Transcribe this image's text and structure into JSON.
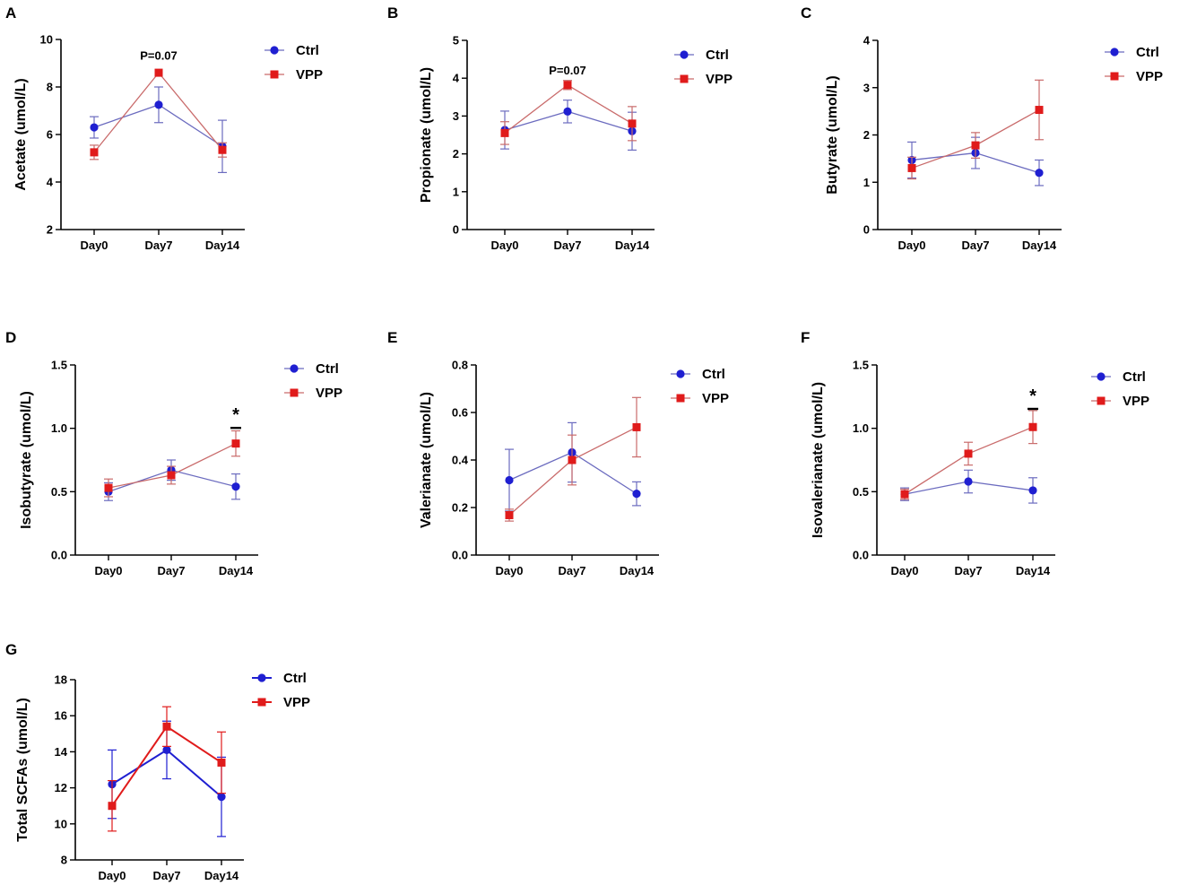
{
  "colors": {
    "ctrl": "#1f1fd1",
    "vpp": "#e01b1b",
    "ctrl_line": "#6b6bbf",
    "vpp_line": "#c96b6b",
    "axis": "#000000"
  },
  "chart_data": [
    {
      "id": "A",
      "type": "line",
      "ylabel": "Acetate (umol/L)",
      "categories": [
        "Day0",
        "Day7",
        "Day14"
      ],
      "ylim": [
        2,
        10
      ],
      "yticks": [
        2,
        4,
        6,
        8,
        10
      ],
      "ytick_labels": [
        "2",
        "4",
        "6",
        "8",
        "10"
      ],
      "series": [
        {
          "name": "Ctrl",
          "marker": "circle",
          "values": [
            6.3,
            7.25,
            5.5
          ],
          "err_low": [
            0.45,
            0.75,
            1.1
          ],
          "err_high": [
            0.45,
            0.75,
            1.1
          ]
        },
        {
          "name": "VPP",
          "marker": "square",
          "values": [
            5.25,
            8.6,
            5.35
          ],
          "err_low": [
            0.3,
            0.0,
            0.3
          ],
          "err_high": [
            0.3,
            0.0,
            0.3
          ]
        }
      ],
      "annotations": [
        {
          "text": "P=0.07",
          "category": "Day7",
          "y": 9.3
        }
      ],
      "significance": []
    },
    {
      "id": "B",
      "type": "line",
      "ylabel": "Propionate (umol/L)",
      "categories": [
        "Day0",
        "Day7",
        "Day14"
      ],
      "ylim": [
        0,
        5
      ],
      "yticks": [
        0,
        1,
        2,
        3,
        4,
        5
      ],
      "ytick_labels": [
        "0",
        "1",
        "2",
        "3",
        "4",
        "5"
      ],
      "series": [
        {
          "name": "Ctrl",
          "marker": "circle",
          "values": [
            2.63,
            3.12,
            2.6
          ],
          "err_low": [
            0.5,
            0.3,
            0.5
          ],
          "err_high": [
            0.5,
            0.3,
            0.5
          ]
        },
        {
          "name": "VPP",
          "marker": "square",
          "values": [
            2.55,
            3.82,
            2.8
          ],
          "err_low": [
            0.3,
            0.12,
            0.45
          ],
          "err_high": [
            0.3,
            0.12,
            0.45
          ]
        }
      ],
      "annotations": [
        {
          "text": "P=0.07",
          "category": "Day7",
          "y": 4.2
        }
      ],
      "significance": []
    },
    {
      "id": "C",
      "type": "line",
      "ylabel": "Butyrate (umol/L)",
      "categories": [
        "Day0",
        "Day7",
        "Day14"
      ],
      "ylim": [
        0,
        4
      ],
      "yticks": [
        0,
        1,
        2,
        3,
        4
      ],
      "ytick_labels": [
        "0",
        "1",
        "2",
        "3",
        "4"
      ],
      "series": [
        {
          "name": "Ctrl",
          "marker": "circle",
          "values": [
            1.47,
            1.62,
            1.2
          ],
          "err_low": [
            0.38,
            0.33,
            0.27
          ],
          "err_high": [
            0.38,
            0.33,
            0.27
          ]
        },
        {
          "name": "VPP",
          "marker": "square",
          "values": [
            1.3,
            1.78,
            2.53
          ],
          "err_low": [
            0.23,
            0.27,
            0.63
          ],
          "err_high": [
            0.23,
            0.27,
            0.63
          ]
        }
      ],
      "annotations": [],
      "significance": []
    },
    {
      "id": "D",
      "type": "line",
      "ylabel": "Isobutyrate (umol/L)",
      "categories": [
        "Day0",
        "Day7",
        "Day14"
      ],
      "ylim": [
        0,
        1.5
      ],
      "yticks": [
        0,
        0.5,
        1.0,
        1.5
      ],
      "ytick_labels": [
        "0.0",
        "0.5",
        "1.0",
        "1.5"
      ],
      "series": [
        {
          "name": "Ctrl",
          "marker": "circle",
          "values": [
            0.5,
            0.67,
            0.54
          ],
          "err_low": [
            0.07,
            0.08,
            0.1
          ],
          "err_high": [
            0.07,
            0.08,
            0.1
          ]
        },
        {
          "name": "VPP",
          "marker": "square",
          "values": [
            0.53,
            0.63,
            0.88
          ],
          "err_low": [
            0.07,
            0.07,
            0.1
          ],
          "err_high": [
            0.07,
            0.07,
            0.1
          ]
        }
      ],
      "annotations": [],
      "significance": [
        {
          "text": "*",
          "category": "Day14",
          "y": 1.06
        }
      ]
    },
    {
      "id": "E",
      "type": "line",
      "ylabel": "Valerianate (umol/L)",
      "categories": [
        "Day0",
        "Day7",
        "Day14"
      ],
      "ylim": [
        0,
        0.8
      ],
      "yticks": [
        0,
        0.2,
        0.4,
        0.6,
        0.8
      ],
      "ytick_labels": [
        "0.0",
        "0.2",
        "0.4",
        "0.6",
        "0.8"
      ],
      "series": [
        {
          "name": "Ctrl",
          "marker": "circle",
          "values": [
            0.315,
            0.432,
            0.258
          ],
          "err_low": [
            0.13,
            0.125,
            0.05
          ],
          "err_high": [
            0.13,
            0.125,
            0.05
          ]
        },
        {
          "name": "VPP",
          "marker": "square",
          "values": [
            0.168,
            0.4,
            0.538
          ],
          "err_low": [
            0.025,
            0.105,
            0.125
          ],
          "err_high": [
            0.025,
            0.105,
            0.125
          ]
        }
      ],
      "annotations": [],
      "significance": []
    },
    {
      "id": "F",
      "type": "line",
      "ylabel": "Isovalerianate (umol/L)",
      "categories": [
        "Day0",
        "Day7",
        "Day14"
      ],
      "ylim": [
        0,
        1.5
      ],
      "yticks": [
        0,
        0.5,
        1.0,
        1.5
      ],
      "ytick_labels": [
        "0.0",
        "0.5",
        "1.0",
        "1.5"
      ],
      "series": [
        {
          "name": "Ctrl",
          "marker": "circle",
          "values": [
            0.48,
            0.58,
            0.51
          ],
          "err_low": [
            0.05,
            0.09,
            0.1
          ],
          "err_high": [
            0.05,
            0.09,
            0.1
          ]
        },
        {
          "name": "VPP",
          "marker": "square",
          "values": [
            0.48,
            0.8,
            1.01
          ],
          "err_low": [
            0.04,
            0.09,
            0.13
          ],
          "err_high": [
            0.04,
            0.09,
            0.13
          ]
        }
      ],
      "annotations": [],
      "significance": [
        {
          "text": "*",
          "category": "Day14",
          "y": 1.21
        }
      ]
    },
    {
      "id": "G",
      "type": "line",
      "ylabel": "Total SCFAs (umol/L)",
      "categories": [
        "Day0",
        "Day7",
        "Day14"
      ],
      "ylim": [
        8,
        18
      ],
      "yticks": [
        8,
        10,
        12,
        14,
        16,
        18
      ],
      "ytick_labels": [
        "8",
        "10",
        "12",
        "14",
        "16",
        "18"
      ],
      "series": [
        {
          "name": "Ctrl",
          "marker": "circle",
          "values": [
            12.2,
            14.1,
            11.5
          ],
          "err_low": [
            1.9,
            1.6,
            2.2
          ],
          "err_high": [
            1.9,
            1.6,
            2.2
          ]
        },
        {
          "name": "VPP",
          "marker": "square",
          "values": [
            11.0,
            15.4,
            13.4
          ],
          "err_low": [
            1.4,
            1.1,
            1.7
          ],
          "err_high": [
            1.4,
            1.1,
            1.7
          ]
        }
      ],
      "annotations": [],
      "significance": []
    }
  ]
}
